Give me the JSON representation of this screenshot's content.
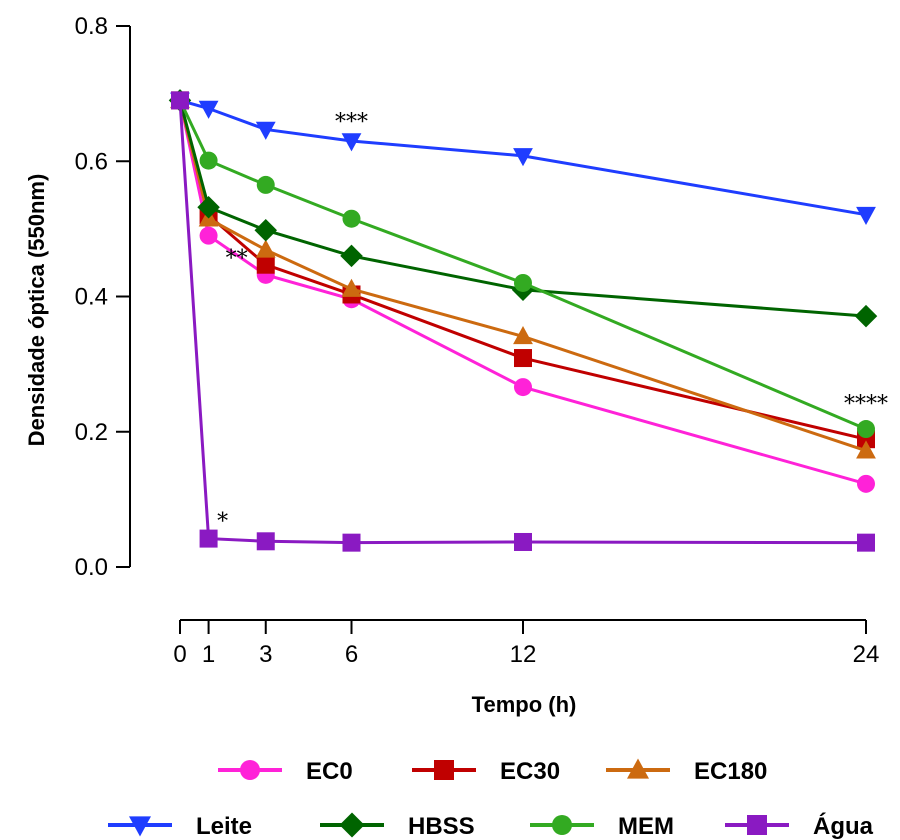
{
  "chart_data": {
    "type": "line",
    "title": "",
    "xlabel": "Tempo (h)",
    "ylabel": "Densidade óptica (550nm)",
    "x": [
      0,
      1,
      3,
      6,
      12,
      24
    ],
    "xticks": [
      "0",
      "1",
      "3",
      "6",
      "12",
      "24"
    ],
    "xlim": [
      0,
      24
    ],
    "ylim": [
      0,
      0.8
    ],
    "yticks": [
      "0.0",
      "0.2",
      "0.4",
      "0.6",
      "0.8"
    ],
    "grid": false,
    "legend_position": "bottom",
    "series": [
      {
        "name": "EC0",
        "color": "#ff22d8",
        "marker": "circle",
        "values": [
          0.69,
          0.49,
          0.432,
          0.396,
          0.266,
          0.123
        ]
      },
      {
        "name": "EC30",
        "color": "#c00000",
        "marker": "square",
        "values": [
          0.69,
          0.52,
          0.447,
          0.403,
          0.309,
          0.189
        ]
      },
      {
        "name": "EC180",
        "color": "#cc6a10",
        "marker": "triangle-up",
        "values": [
          0.69,
          0.515,
          0.469,
          0.411,
          0.341,
          0.172
        ]
      },
      {
        "name": "Leite",
        "color": "#1f3dff",
        "marker": "triangle-down",
        "values": [
          0.69,
          0.678,
          0.647,
          0.63,
          0.608,
          0.521
        ]
      },
      {
        "name": "HBSS",
        "color": "#006400",
        "marker": "diamond",
        "values": [
          0.69,
          0.532,
          0.498,
          0.46,
          0.41,
          0.371
        ]
      },
      {
        "name": "MEM",
        "color": "#33aa22",
        "marker": "circle",
        "values": [
          0.69,
          0.601,
          0.565,
          0.515,
          0.42,
          0.204
        ]
      },
      {
        "name": "Água",
        "color": "#8a1ac2",
        "marker": "square",
        "values": [
          0.69,
          0.042,
          0.038,
          0.036,
          0.037,
          0.036
        ]
      }
    ],
    "annotations": [
      {
        "text": "*",
        "x": 1,
        "y": 0.042
      },
      {
        "text": "**",
        "x": 1,
        "y": 0.49
      },
      {
        "text": "***",
        "x": 6,
        "y": 0.63
      },
      {
        "text": "****",
        "x": 24,
        "y": 0.204
      }
    ]
  }
}
